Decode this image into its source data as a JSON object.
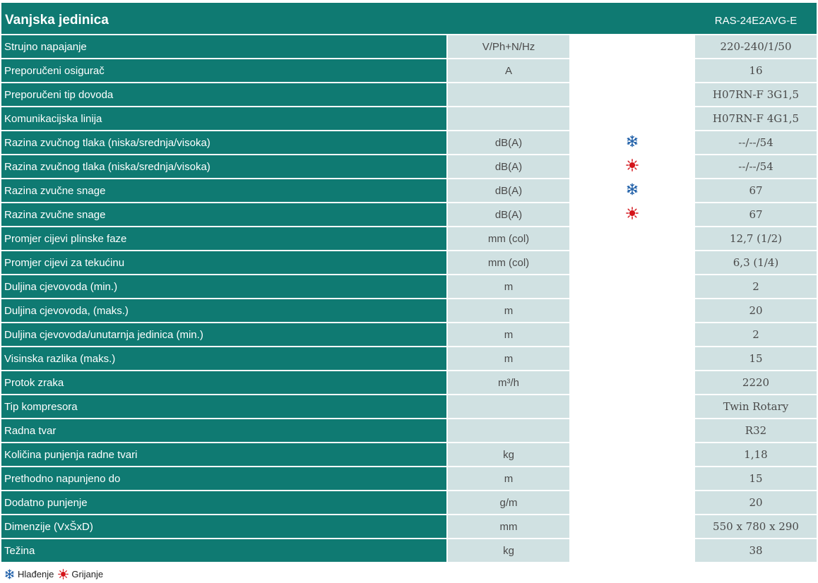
{
  "header": {
    "title": "Vanjska jedinica",
    "model": "RAS-24E2AVG-E"
  },
  "rows": [
    {
      "label": "Strujno napajanje",
      "unit": "V/Ph+N/Hz",
      "mode": "",
      "value": "220-240/1/50"
    },
    {
      "label": "Preporučeni osigurač",
      "unit": "A",
      "mode": "",
      "value": "16"
    },
    {
      "label": "Preporučeni tip dovoda",
      "unit": "",
      "mode": "",
      "value": "H07RN-F 3G1,5"
    },
    {
      "label": "Komunikacijska linija",
      "unit": "",
      "mode": "",
      "value": "H07RN-F 4G1,5"
    },
    {
      "label": "Razina zvučnog tlaka (niska/srednja/visoka)",
      "unit": "dB(A)",
      "mode": "snowflake-icon",
      "value": "--/--/54"
    },
    {
      "label": "Razina zvučnog tlaka (niska/srednja/visoka)",
      "unit": "dB(A)",
      "mode": "sun-icon",
      "value": "--/--/54"
    },
    {
      "label": "Razina zvučne snage",
      "unit": "dB(A)",
      "mode": "snowflake-icon",
      "value": "67"
    },
    {
      "label": "Razina zvučne snage",
      "unit": "dB(A)",
      "mode": "sun-icon",
      "value": "67"
    },
    {
      "label": "Promjer cijevi plinske faze",
      "unit": "mm (col)",
      "mode": "",
      "value": "12,7 (1/2)"
    },
    {
      "label": "Promjer cijevi za tekućinu",
      "unit": "mm (col)",
      "mode": "",
      "value": "6,3 (1/4)"
    },
    {
      "label": "Duljina cjevovoda (min.)",
      "unit": "m",
      "mode": "",
      "value": "2"
    },
    {
      "label": "Duljina cjevovoda, (maks.)",
      "unit": "m",
      "mode": "",
      "value": "20"
    },
    {
      "label": "Duljina cjevovoda/unutarnja jedinica (min.)",
      "unit": "m",
      "mode": "",
      "value": "2"
    },
    {
      "label": "Visinska razlika (maks.)",
      "unit": "m",
      "mode": "",
      "value": "15"
    },
    {
      "label": "Protok zraka",
      "unit": "m³/h",
      "mode": "",
      "value": "2220"
    },
    {
      "label": "Tip kompresora",
      "unit": "",
      "mode": "",
      "value": "Twin Rotary"
    },
    {
      "label": "Radna tvar",
      "unit": "",
      "mode": "",
      "value": "R32"
    },
    {
      "label": "Količina punjenja radne tvari",
      "unit": "kg",
      "mode": "",
      "value": "1,18"
    },
    {
      "label": "Prethodno napunjeno do",
      "unit": "m",
      "mode": "",
      "value": "15"
    },
    {
      "label": "Dodatno punjenje",
      "unit": "g/m",
      "mode": "",
      "value": "20"
    },
    {
      "label": "Dimenzije (VxŠxD)",
      "unit": "mm",
      "mode": "",
      "value": "550 x 780 x 290"
    },
    {
      "label": "Težina",
      "unit": "kg",
      "mode": "",
      "value": "38"
    }
  ],
  "legend": {
    "cooling_label": "Hlađenje",
    "heating_label": "Grijanje"
  },
  "colors": {
    "header_bg": "#0f7a72",
    "cell_bg": "#d0e1e2",
    "snowflake": "#1f5fa8",
    "sun": "#d4141a"
  }
}
